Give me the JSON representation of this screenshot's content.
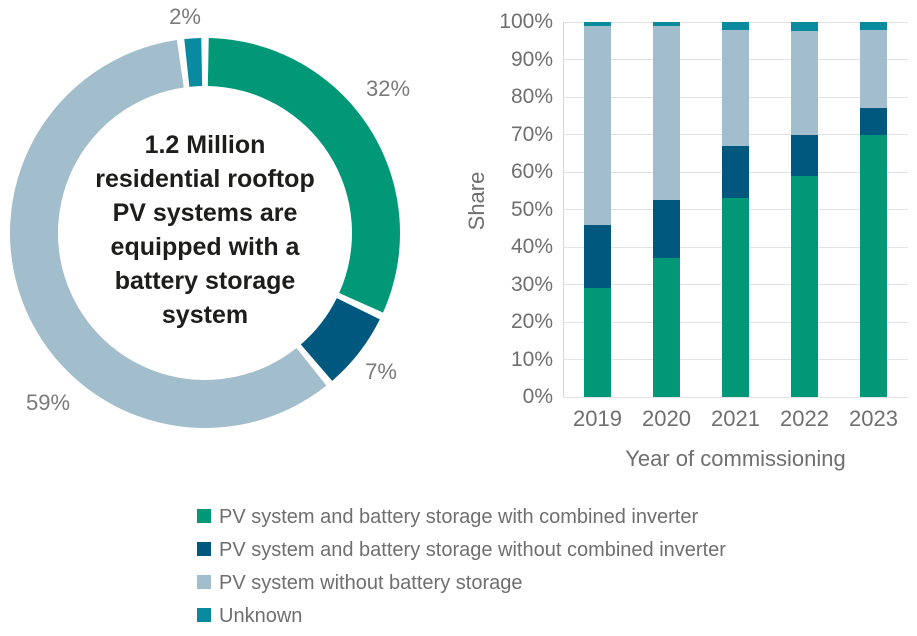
{
  "chart_data": [
    {
      "type": "pie",
      "subtype": "donut",
      "direction": "clockwise",
      "start_angle_deg": 0,
      "center_text": "1.2 Million residential rooftop PV systems are equipped with a battery storage system",
      "center_text_lines": [
        "1.2 Million",
        "residential rooftop",
        "PV systems are",
        "equipped with a",
        "battery storage",
        "system"
      ],
      "slices": [
        {
          "label": "PV system and battery storage with combined inverter",
          "pct_label": "32%",
          "value": 32,
          "color": "#009877"
        },
        {
          "label": "PV system and battery storage without combined inverter",
          "pct_label": "7%",
          "value": 7,
          "color": "#00587E"
        },
        {
          "label": "PV system without battery storage",
          "pct_label": "59%",
          "value": 59,
          "color": "#A2BDCB"
        },
        {
          "label": "Unknown",
          "pct_label": "2%",
          "value": 2,
          "color": "#0A8A9E"
        }
      ]
    },
    {
      "type": "bar",
      "stacked": true,
      "categories": [
        "2019",
        "2020",
        "2021",
        "2022",
        "2023"
      ],
      "series": [
        {
          "name": "PV system and battery storage with combined inverter",
          "color": "#009877",
          "values": [
            29,
            37,
            53,
            59,
            70
          ]
        },
        {
          "name": "PV system and battery storage without combined inverter",
          "color": "#00587E",
          "values": [
            17,
            15.5,
            14,
            11,
            7
          ]
        },
        {
          "name": "PV system without battery storage",
          "color": "#A2BDCB",
          "values": [
            53,
            46.5,
            31,
            27.5,
            21
          ]
        },
        {
          "name": "Unknown",
          "color": "#0A8A9E",
          "values": [
            1,
            1,
            2,
            2.5,
            2
          ]
        }
      ],
      "xlabel": "Year of commissioning",
      "ylabel": "Share",
      "ylim": [
        0,
        100
      ],
      "y_ticks": [
        "0%",
        "10%",
        "20%",
        "30%",
        "40%",
        "50%",
        "60%",
        "70%",
        "80%",
        "90%",
        "100%"
      ],
      "grid": true,
      "legend_position": "bottom"
    }
  ],
  "legend": {
    "items": [
      {
        "label": "PV system and battery storage with combined inverter",
        "color": "#009877"
      },
      {
        "label": "PV system and battery storage without combined inverter",
        "color": "#00587E"
      },
      {
        "label": "PV system without battery storage",
        "color": "#A2BDCB"
      },
      {
        "label": "Unknown",
        "color": "#0A8A9E"
      }
    ]
  }
}
